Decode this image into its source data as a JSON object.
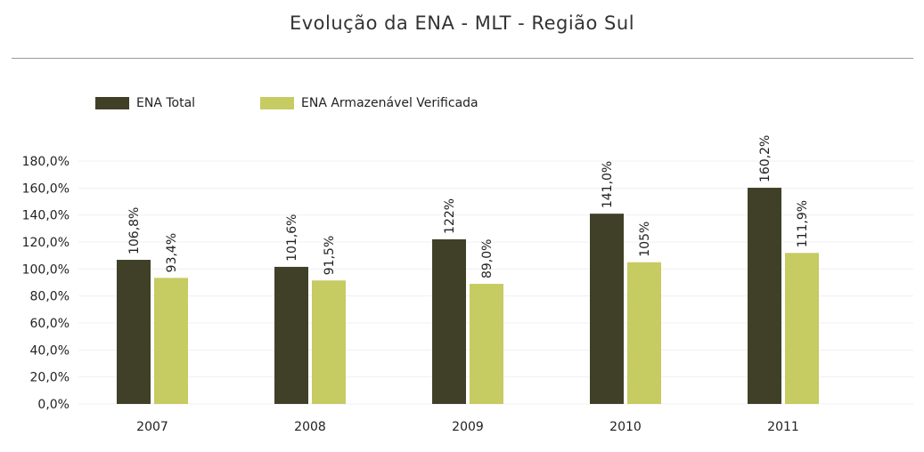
{
  "title": "Evolução da ENA - MLT - Região Sul",
  "colors": {
    "ena_total": "#404028",
    "ena_armazenavel": "#c6cb62",
    "grid": "#f0f0f0",
    "title_rule": "#999999"
  },
  "legend": [
    {
      "label": "ENA Total",
      "color": "#404028"
    },
    {
      "label": "ENA Armazenável Verificada",
      "color": "#c6cb62"
    }
  ],
  "chart_data": {
    "type": "bar",
    "title": "Evolução da ENA - MLT - Região Sul",
    "xlabel": "",
    "ylabel": "",
    "categories": [
      "2007",
      "2008",
      "2009",
      "2010",
      "2011"
    ],
    "ylim": [
      0,
      180
    ],
    "yticks": [
      0,
      20,
      40,
      60,
      80,
      100,
      120,
      140,
      160,
      180
    ],
    "ytick_labels": [
      "0,0%",
      "20,0%",
      "40,0%",
      "60,0%",
      "80,0%",
      "100,0%",
      "120,0%",
      "140,0%",
      "160,0%",
      "180,0%"
    ],
    "grid": true,
    "legend_position": "top-left",
    "series": [
      {
        "name": "ENA Total",
        "color": "#404028",
        "values": [
          106.8,
          101.6,
          122,
          141.0,
          160.2
        ],
        "labels": [
          "106,8%",
          "101,6%",
          "122%",
          "141,0%",
          "160,2%"
        ]
      },
      {
        "name": "ENA Armazenável Verificada",
        "color": "#c6cb62",
        "values": [
          93.4,
          91.5,
          89.0,
          105,
          111.9
        ],
        "labels": [
          "93,4%",
          "91,5%",
          "89,0%",
          "105%",
          "111,9%"
        ]
      }
    ]
  }
}
